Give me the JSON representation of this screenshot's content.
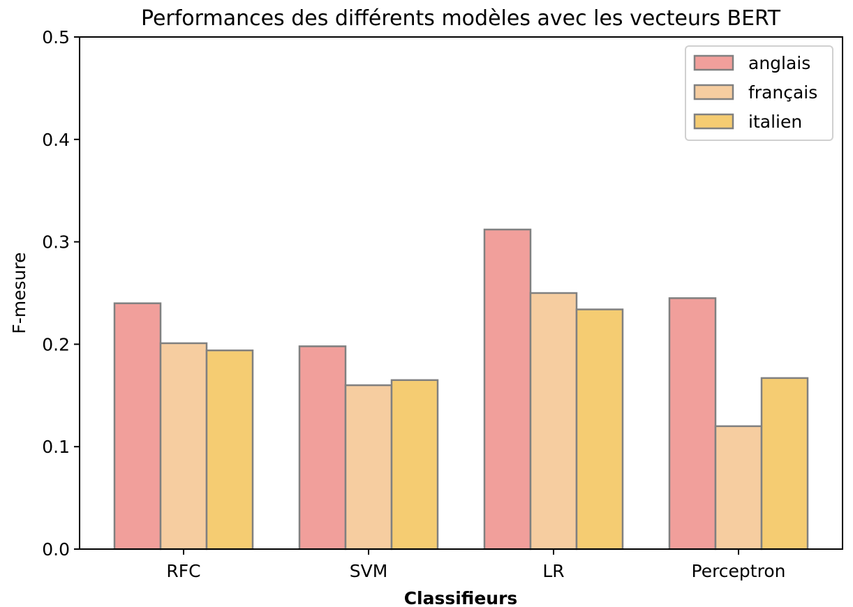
{
  "chart_data": {
    "type": "bar",
    "title": "Performances des différents modèles avec les vecteurs BERT",
    "xlabel": "Classifieurs",
    "ylabel": "F-mesure",
    "categories": [
      "RFC",
      "SVM",
      "LR",
      "Perceptron"
    ],
    "ylim": [
      0,
      0.5
    ],
    "yticks": [
      "0.0",
      "0.1",
      "0.2",
      "0.3",
      "0.4",
      "0.5"
    ],
    "series": [
      {
        "name": "anglais",
        "color": "#f19f9b",
        "values": [
          0.24,
          0.198,
          0.312,
          0.245
        ]
      },
      {
        "name": "français",
        "color": "#f6cda0",
        "values": [
          0.201,
          0.16,
          0.25,
          0.12
        ]
      },
      {
        "name": "italien",
        "color": "#f5cc72",
        "values": [
          0.194,
          0.165,
          0.234,
          0.167
        ]
      }
    ],
    "bar_edge_color": "#808080",
    "legend_position": "top-right",
    "grid": false
  }
}
